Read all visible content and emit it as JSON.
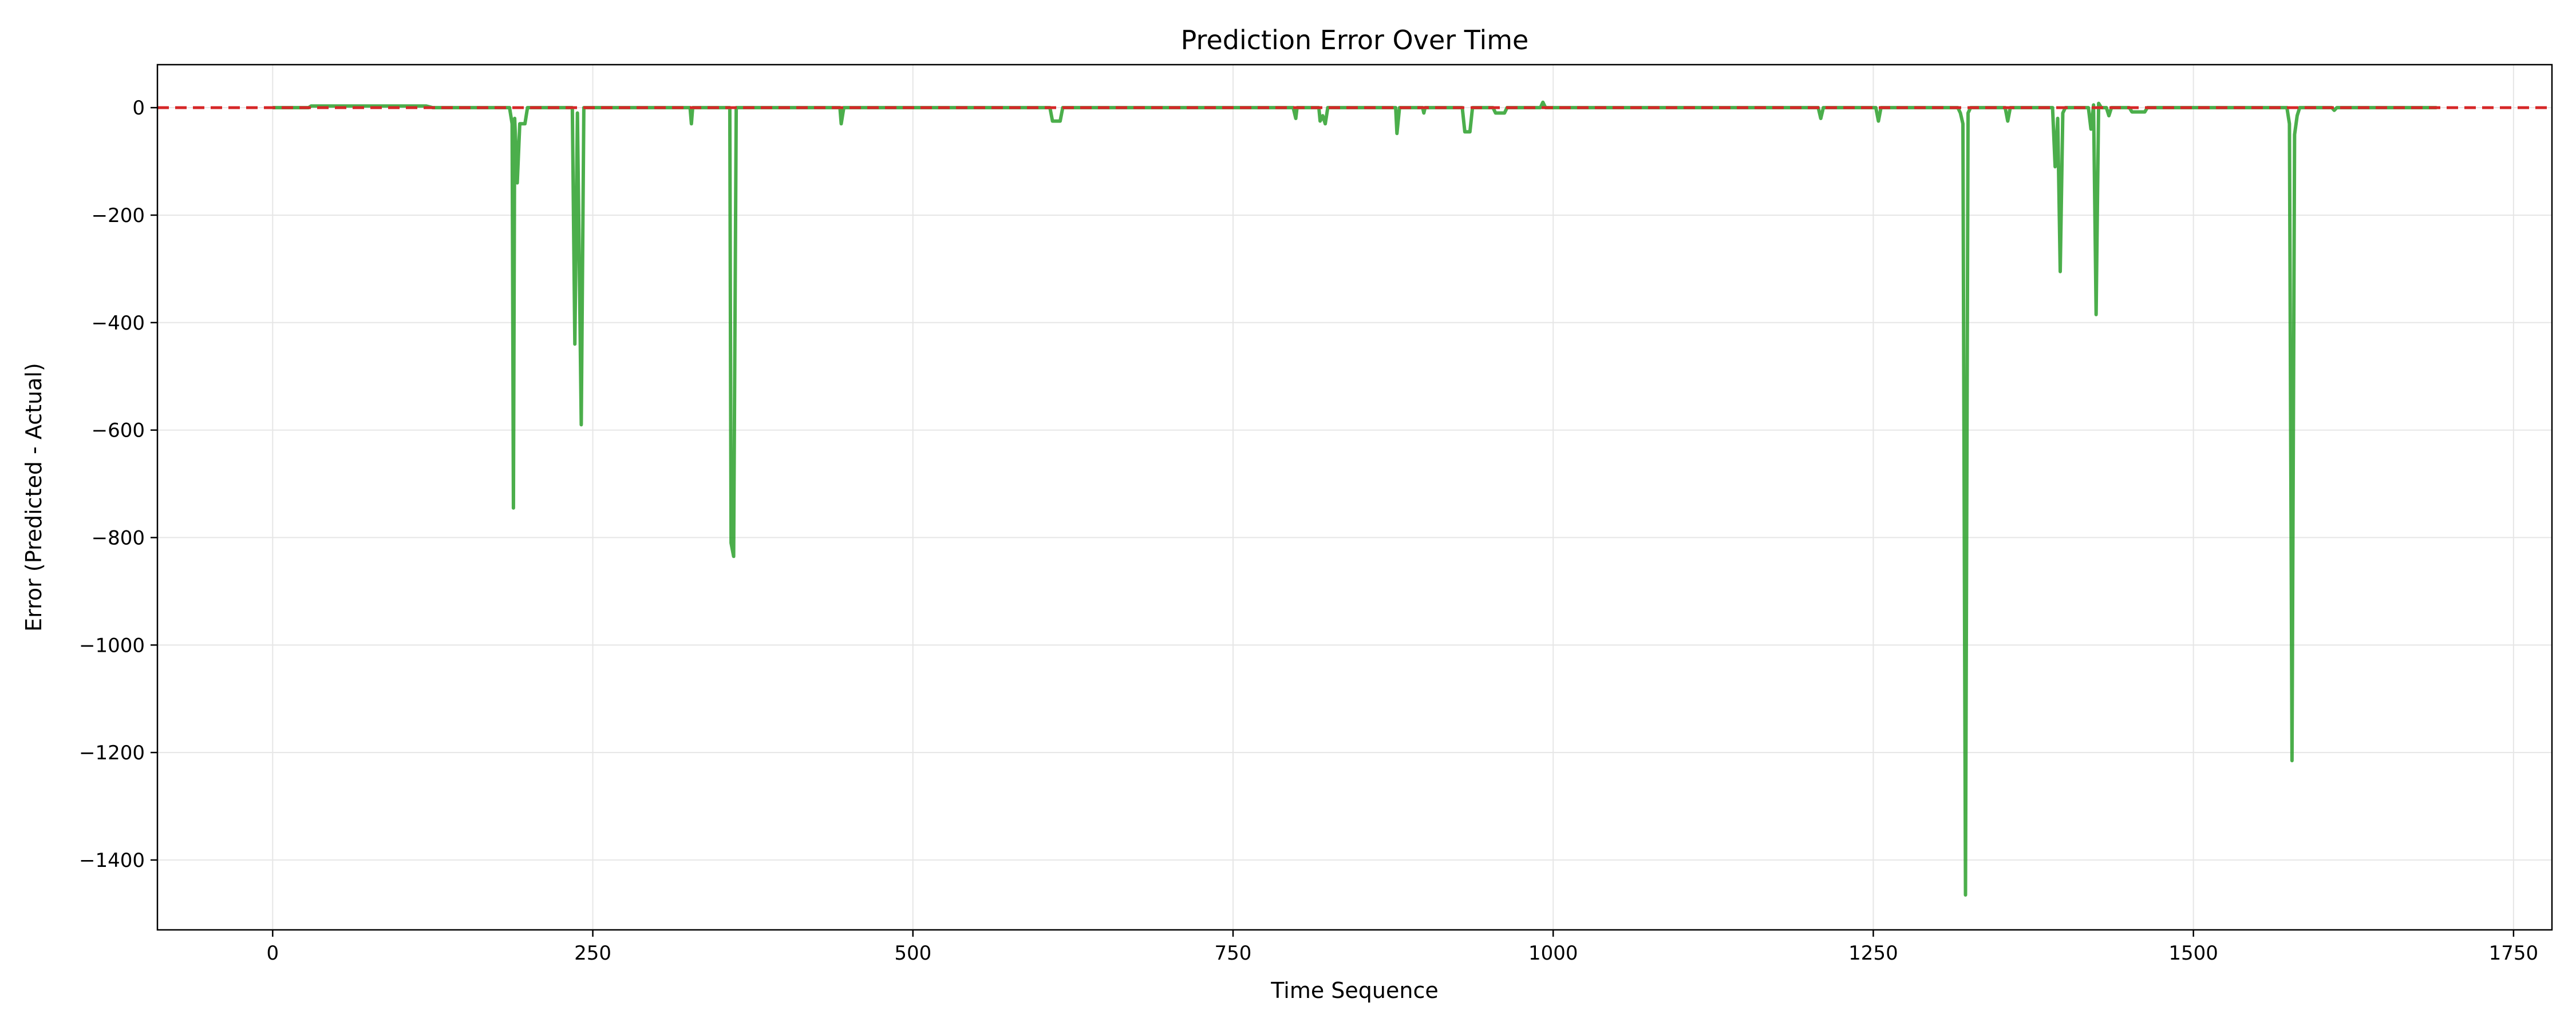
{
  "chart_data": {
    "type": "line",
    "title": "Prediction Error Over Time",
    "xlabel": "Time Sequence",
    "ylabel": "Error (Predicted - Actual)",
    "xlim": [
      -90,
      1780
    ],
    "ylim": [
      -1530,
      80
    ],
    "xticks": [
      0,
      250,
      500,
      750,
      1000,
      1250,
      1500,
      1750
    ],
    "yticks": [
      0,
      -200,
      -400,
      -600,
      -800,
      -1000,
      -1200,
      -1400
    ],
    "grid": true,
    "colors": {
      "series": "#2ca02c",
      "reference": "#d62728",
      "grid": "#e6e6e6",
      "axes": "#000000"
    },
    "reference_line": {
      "y": 0,
      "style": "dashed"
    },
    "series": [
      {
        "values": [
          [
            0,
            0
          ],
          [
            28,
            0
          ],
          [
            30,
            3
          ],
          [
            120,
            3
          ],
          [
            125,
            0
          ],
          [
            185,
            0
          ],
          [
            187,
            -30
          ],
          [
            188,
            -745
          ],
          [
            189,
            -20
          ],
          [
            191,
            -140
          ],
          [
            193,
            -30
          ],
          [
            197,
            -30
          ],
          [
            199,
            0
          ],
          [
            234,
            0
          ],
          [
            236,
            -440
          ],
          [
            238,
            -10
          ],
          [
            241,
            -590
          ],
          [
            243,
            0
          ],
          [
            326,
            0
          ],
          [
            327,
            -30
          ],
          [
            328,
            0
          ],
          [
            357,
            0
          ],
          [
            358,
            -810
          ],
          [
            360,
            -835
          ],
          [
            362,
            0
          ],
          [
            443,
            0
          ],
          [
            444,
            -30
          ],
          [
            446,
            0
          ],
          [
            607,
            0
          ],
          [
            609,
            -25
          ],
          [
            615,
            -25
          ],
          [
            617,
            0
          ],
          [
            797,
            0
          ],
          [
            799,
            -20
          ],
          [
            800,
            0
          ],
          [
            817,
            0
          ],
          [
            818,
            -25
          ],
          [
            820,
            -15
          ],
          [
            822,
            -30
          ],
          [
            824,
            0
          ],
          [
            877,
            0
          ],
          [
            878,
            -48
          ],
          [
            880,
            0
          ],
          [
            898,
            0
          ],
          [
            899,
            -10
          ],
          [
            900,
            0
          ],
          [
            929,
            0
          ],
          [
            931,
            -45
          ],
          [
            935,
            -45
          ],
          [
            937,
            0
          ],
          [
            953,
            0
          ],
          [
            955,
            -10
          ],
          [
            962,
            -10
          ],
          [
            964,
            0
          ],
          [
            990,
            0
          ],
          [
            992,
            10
          ],
          [
            994,
            0
          ],
          [
            1207,
            0
          ],
          [
            1209,
            -20
          ],
          [
            1211,
            0
          ],
          [
            1252,
            0
          ],
          [
            1254,
            -25
          ],
          [
            1256,
            0
          ],
          [
            1316,
            0
          ],
          [
            1318,
            -10
          ],
          [
            1320,
            -30
          ],
          [
            1322,
            -1465
          ],
          [
            1324,
            -10
          ],
          [
            1326,
            0
          ],
          [
            1353,
            0
          ],
          [
            1355,
            -25
          ],
          [
            1357,
            0
          ],
          [
            1390,
            0
          ],
          [
            1392,
            -110
          ],
          [
            1394,
            -20
          ],
          [
            1396,
            -305
          ],
          [
            1398,
            -10
          ],
          [
            1400,
            0
          ],
          [
            1418,
            0
          ],
          [
            1420,
            -40
          ],
          [
            1422,
            5
          ],
          [
            1424,
            -385
          ],
          [
            1426,
            8
          ],
          [
            1428,
            0
          ],
          [
            1432,
            0
          ],
          [
            1434,
            -15
          ],
          [
            1436,
            0
          ],
          [
            1450,
            0
          ],
          [
            1452,
            -8
          ],
          [
            1462,
            -8
          ],
          [
            1464,
            0
          ],
          [
            1573,
            0
          ],
          [
            1575,
            -30
          ],
          [
            1577,
            -1215
          ],
          [
            1579,
            -50
          ],
          [
            1581,
            -15
          ],
          [
            1583,
            0
          ],
          [
            1608,
            0
          ],
          [
            1610,
            -5
          ],
          [
            1612,
            0
          ],
          [
            1690,
            0
          ]
        ]
      }
    ]
  }
}
